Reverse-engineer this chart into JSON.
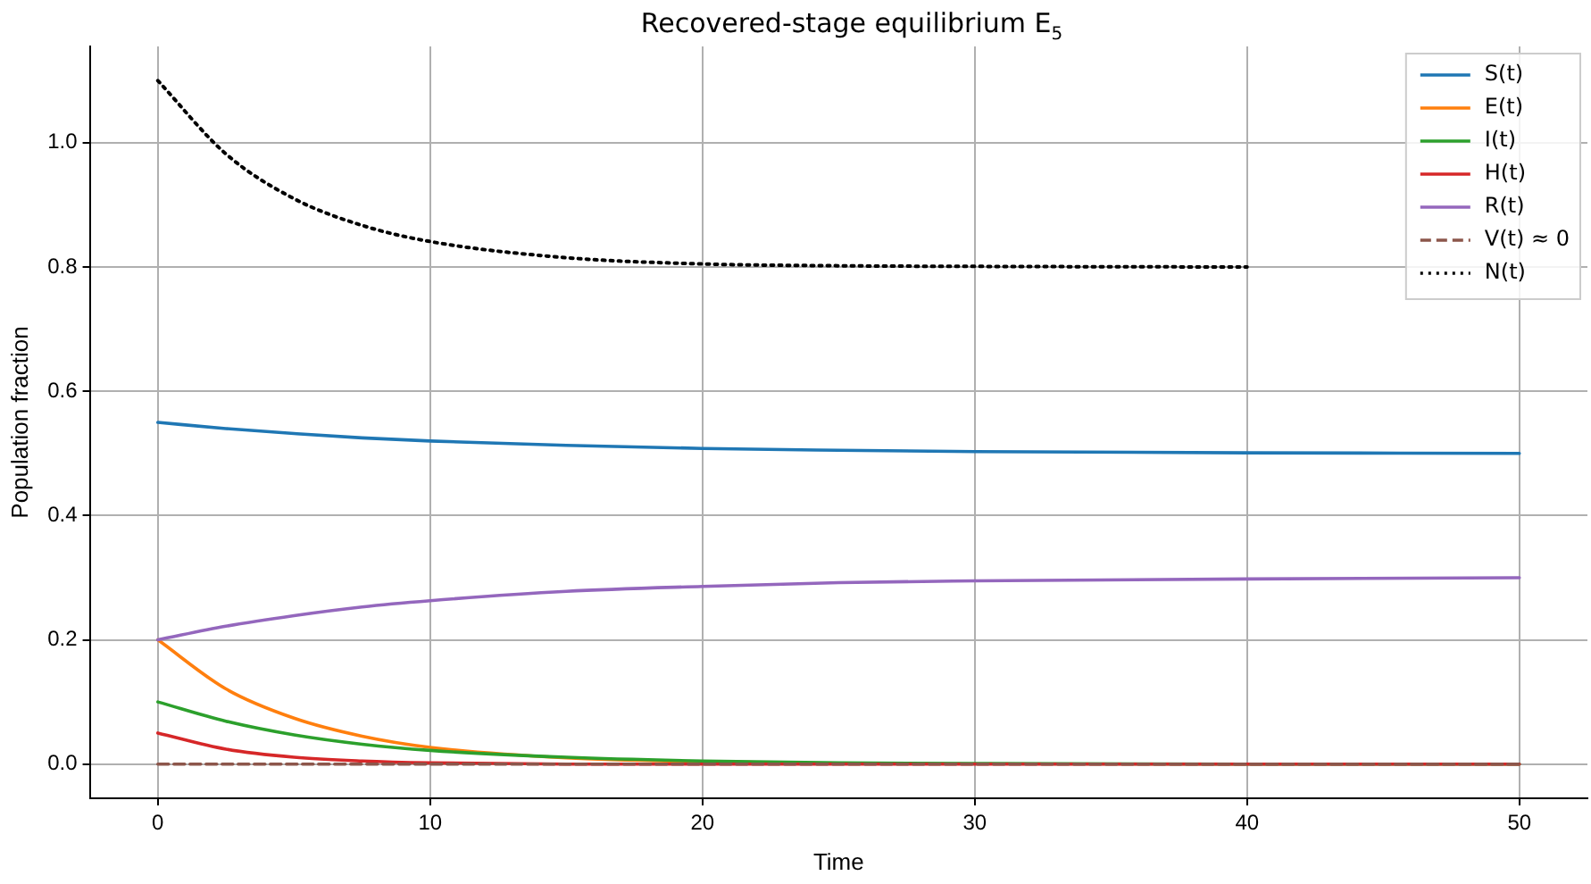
{
  "chart_data": {
    "type": "line",
    "title": "Recovered-stage equilibrium E$_{5}$",
    "xlabel": "Time",
    "ylabel": "Population fraction",
    "x": [
      0,
      2.5,
      5,
      7.5,
      10,
      15,
      20,
      25,
      30,
      40,
      50
    ],
    "series": [
      {
        "name": "S(t)",
        "color": "#1f77b4",
        "values": [
          0.55,
          0.54,
          0.532,
          0.525,
          0.52,
          0.513,
          0.508,
          0.505,
          0.503,
          0.501,
          0.5
        ]
      },
      {
        "name": "E(t)",
        "color": "#ff7f0e",
        "values": [
          0.2,
          0.121,
          0.074,
          0.045,
          0.027,
          0.01,
          0.004,
          0.001,
          null,
          null,
          null
        ]
      },
      {
        "name": "I(t)",
        "color": "#2ca02c",
        "values": [
          0.1,
          0.069,
          0.047,
          0.032,
          0.022,
          0.011,
          0.005,
          0.002,
          0.001,
          0,
          0
        ]
      },
      {
        "name": "H(t)",
        "color": "#d62728",
        "values": [
          0.05,
          0.024,
          0.011,
          0.005,
          0.002,
          0,
          0,
          0,
          0,
          0,
          0
        ]
      },
      {
        "name": "R(t)",
        "color": "#9467bd",
        "values": [
          0.2,
          0.222,
          0.239,
          0.253,
          0.263,
          0.278,
          0.286,
          0.292,
          0.295,
          0.298,
          0.3
        ]
      },
      {
        "name": "V(t) ≈ 0",
        "color": "#8c564b",
        "line_style": "dashed",
        "values": [
          0,
          0,
          0,
          0,
          0,
          0,
          0,
          0,
          0,
          0,
          0
        ]
      },
      {
        "name": "N(t)",
        "color": "#000000",
        "line_style": "dotted",
        "values": [
          1.1,
          0.982,
          0.91,
          0.867,
          0.841,
          0.815,
          0.805,
          0.802,
          0.801,
          0.8,
          null
        ]
      }
    ],
    "xlim": [
      -2.5,
      52.5
    ],
    "xticks": [
      0,
      10,
      20,
      30,
      40,
      50
    ],
    "ylim": [
      -0.055,
      1.155
    ],
    "yticks": [
      {
        "value": 0,
        "label": "0.0"
      },
      {
        "value": 0.2,
        "label": "0.2"
      },
      {
        "value": 0.4,
        "label": "0.4"
      },
      {
        "value": 0.6,
        "label": "0.6"
      },
      {
        "value": 0.8,
        "label": "0.8"
      },
      {
        "value": 1,
        "label": "1.0"
      }
    ],
    "grid": true,
    "legend": "top right",
    "marker": "none"
  }
}
